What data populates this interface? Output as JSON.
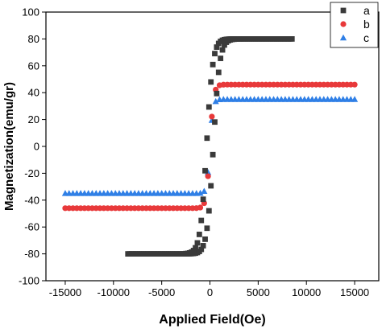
{
  "chart_data": {
    "type": "scatter",
    "xlabel": "Applied Field(Oe)",
    "ylabel": "Magnetization(emu/gr)",
    "xlim": [
      -17000,
      17500
    ],
    "ylim": [
      -100,
      100
    ],
    "xticks": [
      -15000,
      -10000,
      -5000,
      0,
      5000,
      10000,
      15000
    ],
    "yticks": [
      -100,
      -80,
      -60,
      -40,
      -20,
      0,
      20,
      40,
      60,
      80,
      100
    ],
    "grid": false,
    "legend_position": "top-right",
    "series": [
      {
        "name": "a",
        "color": "#3a3a3a",
        "marker": "square",
        "x_range": [
          -8500,
          8500
        ],
        "Ms": 80,
        "Hc": 350,
        "step": 200,
        "shape": 650
      },
      {
        "name": "b",
        "color": "#e8393a",
        "marker": "circle",
        "x_range": [
          -15000,
          15000
        ],
        "Ms": 46,
        "Hc": 0,
        "step": 400,
        "shape": 380
      },
      {
        "name": "c",
        "color": "#2f7fe6",
        "marker": "triangle",
        "x_range": [
          -15000,
          15000
        ],
        "Ms": 35,
        "Hc": 0,
        "step": 400,
        "shape": 320
      }
    ]
  }
}
